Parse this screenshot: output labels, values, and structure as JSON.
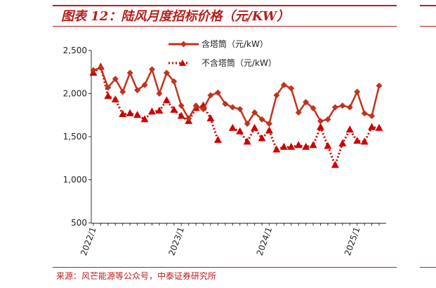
{
  "title": "图表 12：陆风月度招标价格（元/KW）",
  "source": "来源：风芒能源等公众号，中泰证券研究所",
  "chart_data": {
    "type": "line",
    "title": "",
    "xlabel": "",
    "ylabel": "",
    "ylim": [
      500,
      2500
    ],
    "yticks": [
      "2,500",
      "2,000",
      "1,500",
      "1,000",
      "500"
    ],
    "ytick_values": [
      2500,
      2000,
      1500,
      1000,
      500
    ],
    "x_categories": [
      "2022/1",
      "2022/2",
      "2022/3",
      "2022/4",
      "2022/5",
      "2022/6",
      "2022/7",
      "2022/8",
      "2022/9",
      "2022/10",
      "2022/11",
      "2022/12",
      "2023/1",
      "2023/2",
      "2023/3",
      "2023/4",
      "2023/5",
      "2023/6",
      "2023/7",
      "2023/8",
      "2023/9",
      "2023/10",
      "2023/11",
      "2023/12",
      "2024/1",
      "2024/2",
      "2024/3",
      "2024/4",
      "2024/5",
      "2024/6",
      "2024/7",
      "2024/8",
      "2024/9",
      "2024/10",
      "2024/11",
      "2024/12",
      "2025/1",
      "2025/2",
      "2025/3",
      "2025/4"
    ],
    "xtick_labels": [
      "2022/1",
      "2023/1",
      "2024/1",
      "2025/1"
    ],
    "xtick_indices": [
      0,
      12,
      24,
      36
    ],
    "legend_position": "top-center",
    "colors": {
      "with_tower": "#c0341d",
      "without_tower": "#cc0000"
    },
    "series": [
      {
        "name": "含塔筒（元/kW）",
        "style": "solid-diamond",
        "values": [
          2270,
          2300,
          2070,
          2170,
          2020,
          2240,
          2040,
          2100,
          2280,
          2000,
          2240,
          2140,
          1860,
          1710,
          1860,
          1820,
          1980,
          2010,
          1880,
          1840,
          1820,
          1650,
          1780,
          1700,
          1650,
          1980,
          2100,
          2060,
          1780,
          1900,
          1830,
          1680,
          1700,
          1840,
          1860,
          1840,
          2020,
          1770,
          1740,
          2090
        ]
      },
      {
        "name": "不含塔筒（元/kW）",
        "style": "dotted-triangle",
        "values": [
          2240,
          2310,
          1970,
          1930,
          1760,
          1770,
          1750,
          1700,
          1790,
          1800,
          1920,
          1810,
          1740,
          1680,
          1830,
          1860,
          1710,
          1460,
          null,
          1600,
          1560,
          1440,
          1600,
          1480,
          1570,
          1350,
          1380,
          1380,
          1400,
          1380,
          1400,
          1610,
          1390,
          1170,
          1420,
          1580,
          1450,
          1440,
          1610,
          1600
        ]
      }
    ]
  }
}
